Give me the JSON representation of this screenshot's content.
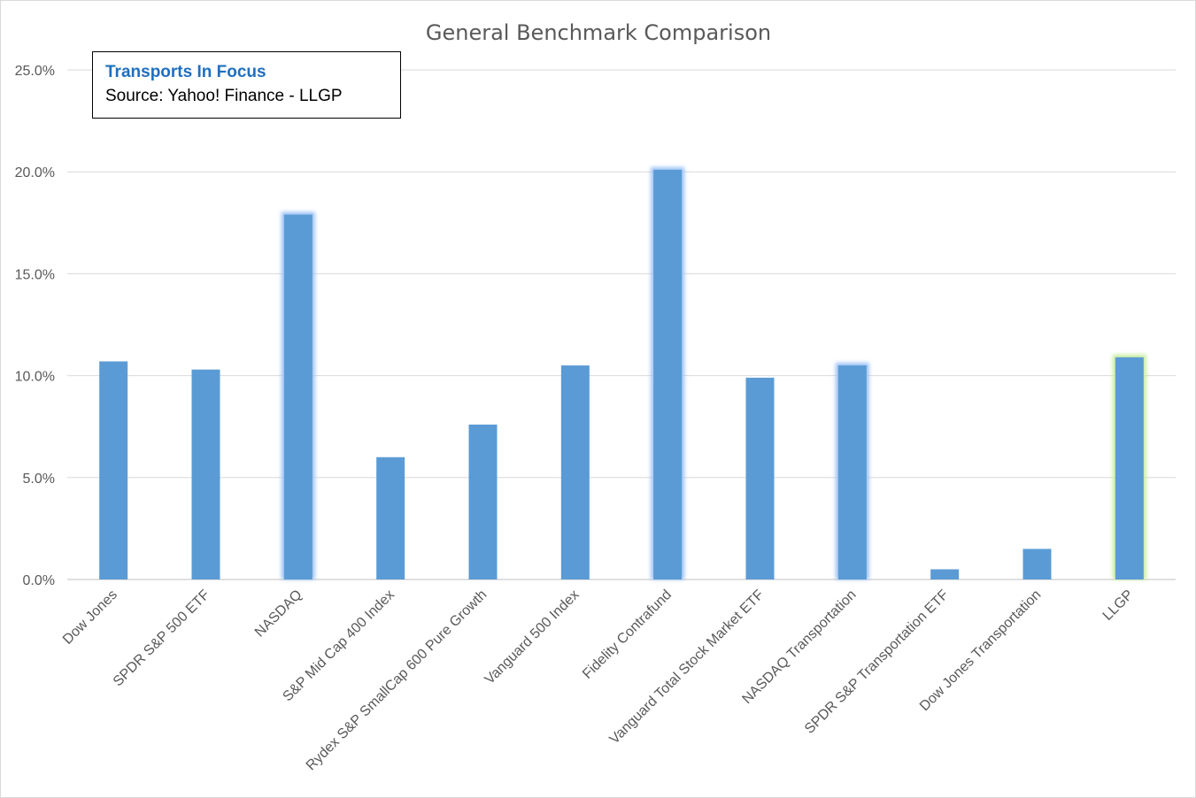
{
  "chart_data": {
    "type": "bar",
    "title": "General Benchmark Comparison",
    "xlabel": "",
    "ylabel": "",
    "ylim": [
      0,
      0.25
    ],
    "yticks": [
      0,
      0.05,
      0.1,
      0.15,
      0.2,
      0.25
    ],
    "ytick_labels": [
      "0.0%",
      "5.0%",
      "10.0%",
      "15.0%",
      "20.0%",
      "25.0%"
    ],
    "grid": true,
    "legend": "none",
    "categories": [
      "Dow Jones",
      "SPDR S&P 500 ETF",
      "NASDAQ",
      "S&P Mid Cap 400 Index",
      "Rydex S&P SmallCap 600 Pure Growth",
      "Vanguard 500 Index",
      "Fidelity Contrafund",
      "Vanguard Total Stock Market ETF",
      "NASDAQ Transportation",
      "SPDR S&P Transportation ETF",
      "Dow Jones Transportation",
      "LLGP"
    ],
    "values": [
      0.107,
      0.103,
      0.179,
      0.06,
      0.076,
      0.105,
      0.201,
      0.099,
      0.105,
      0.005,
      0.015,
      0.109
    ],
    "highlight": [
      "none",
      "none",
      "blue",
      "none",
      "none",
      "none",
      "blue",
      "none",
      "blue",
      "none",
      "none",
      "green"
    ],
    "annotation": {
      "title": "Transports In Focus",
      "source": "Source: Yahoo! Finance - LLGP"
    }
  },
  "colors": {
    "bar": "#5b9bd5",
    "glow_blue": "#9ec3f5",
    "glow_green": "#c6eda0",
    "grid": "#d9d9d9",
    "text": "#595959",
    "annotation_title": "#1f6fbf"
  }
}
